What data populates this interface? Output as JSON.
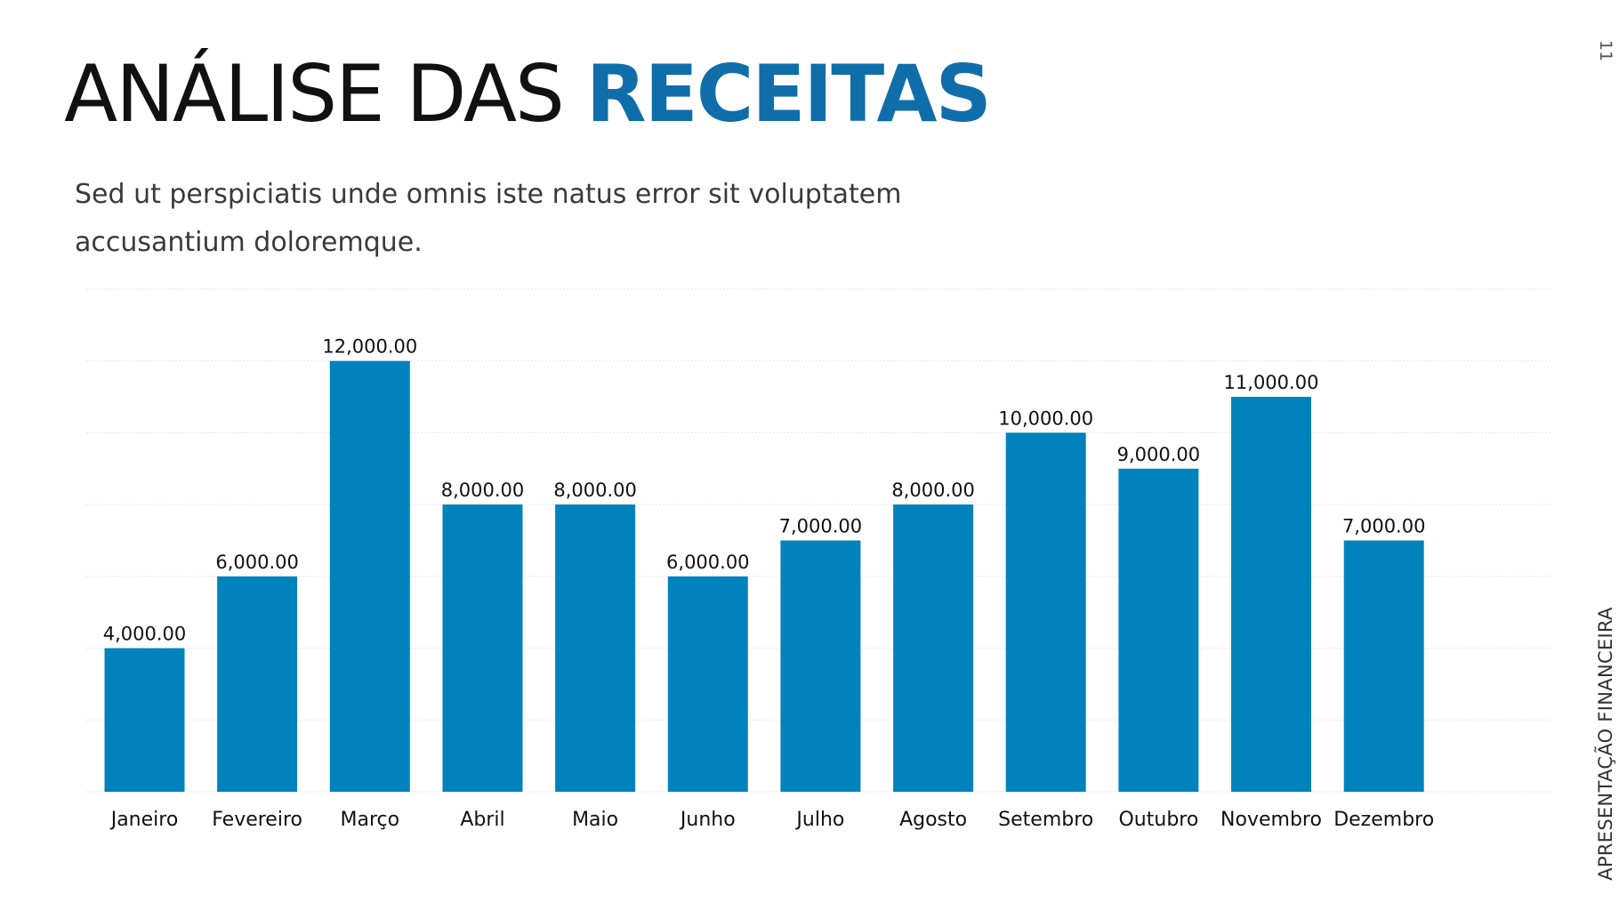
{
  "slide": {
    "title_light": "ANÁLISE DAS ",
    "title_bold": "RECEITAS",
    "subtitle": "Sed ut perspiciatis unde omnis iste natus error sit voluptatem accusantium doloremque.",
    "page_number": "11",
    "side_label": "APRESENTAÇÃO FINANCEIRA"
  },
  "colors": {
    "bar": "#0083bd",
    "title_accent": "#0f6eaa",
    "gridline": "#e6e6e6"
  },
  "chart_data": {
    "type": "bar",
    "title": "",
    "xlabel": "",
    "ylabel": "",
    "categories": [
      "Janeiro",
      "Fevereiro",
      "Março",
      "Abril",
      "Maio",
      "Junho",
      "Julho",
      "Agosto",
      "Setembro",
      "Outubro",
      "Novembro",
      "Dezembro"
    ],
    "values": [
      4000,
      6000,
      12000,
      8000,
      8000,
      6000,
      7000,
      8000,
      10000,
      9000,
      11000,
      7000
    ],
    "data_labels": [
      "4,000.00",
      "6,000.00",
      "12,000.00",
      "8,000.00",
      "8,000.00",
      "6,000.00",
      "7,000.00",
      "8,000.00",
      "10,000.00",
      "9,000.00",
      "11,000.00",
      "7,000.00"
    ],
    "ylim": [
      0,
      14000
    ],
    "grid": true,
    "y_axis_labels_shown": false,
    "legend": "none"
  }
}
